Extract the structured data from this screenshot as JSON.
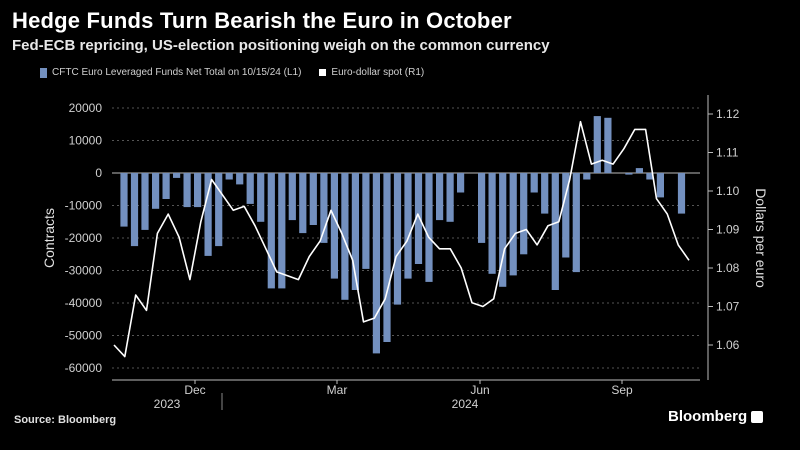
{
  "title": "Hedge Funds Turn Bearish the Euro in October",
  "subtitle": "Fed-ECB repricing, US-election positioning weigh on the common currency",
  "source": "Source: Bloomberg",
  "brand": "Bloomberg",
  "colors": {
    "bar": "#7390bf",
    "line": "#ffffff",
    "grid": "#555555",
    "background": "#000000"
  },
  "chart_data": {
    "type": "bar+line",
    "title": "Hedge Funds Turn Bearish the Euro in October",
    "legend": [
      "CFTC Euro Leveraged Funds Net Total on 10/15/24 (L1)",
      "Euro-dollar spot (R1)"
    ],
    "ylabel_left": "Contracts",
    "ylabel_right": "Dollars per euro",
    "ylim_left": [
      -65000,
      25000
    ],
    "ylim_right": [
      1.05,
      1.125
    ],
    "left_ticks": [
      20000,
      10000,
      0,
      -10000,
      -20000,
      -30000,
      -40000,
      -50000,
      -60000
    ],
    "right_ticks": [
      1.12,
      1.11,
      1.1,
      1.09,
      1.08,
      1.07,
      1.06
    ],
    "x_month_labels": [
      "Dec",
      "Mar",
      "Jun",
      "Sep"
    ],
    "x_year_labels": [
      "2023",
      "2024"
    ],
    "series": [
      {
        "name": "CFTC Euro Leveraged Funds Net Total on 10/15/24 (L1)",
        "kind": "bar",
        "values": [
          -16500,
          -22500,
          -17500,
          -11000,
          -8000,
          -1500,
          -10500,
          -10500,
          -25500,
          -22500,
          -2000,
          -3500,
          -9500,
          -15000,
          -35500,
          -35500,
          -14500,
          -18500,
          -16000,
          -21500,
          -32500,
          -39000,
          -36000,
          -29500,
          -55500,
          -52000,
          -40500,
          -32500,
          -28000,
          -33500,
          -14500,
          -15000,
          -6000,
          0,
          -21500,
          -31000,
          -35000,
          -31500,
          -25000,
          -6000,
          -12500,
          -36000,
          -26000,
          -30500,
          -2000,
          17500,
          17000,
          0,
          -500,
          1500,
          -2000,
          -7500,
          0,
          -12500,
          0
        ]
      },
      {
        "name": "Euro-dollar spot (R1)",
        "kind": "line",
        "values": [
          1.06,
          1.057,
          1.073,
          1.069,
          1.089,
          1.094,
          1.088,
          1.077,
          1.092,
          1.103,
          1.099,
          1.095,
          1.096,
          1.091,
          1.085,
          1.079,
          1.078,
          1.077,
          1.083,
          1.087,
          1.095,
          1.089,
          1.082,
          1.066,
          1.067,
          1.072,
          1.083,
          1.087,
          1.094,
          1.088,
          1.085,
          1.085,
          1.08,
          1.071,
          1.07,
          1.072,
          1.085,
          1.089,
          1.09,
          1.086,
          1.091,
          1.092,
          1.103,
          1.118,
          1.107,
          1.108,
          1.107,
          1.111,
          1.116,
          1.116,
          1.098,
          1.094,
          1.086,
          1.082
        ]
      }
    ]
  }
}
